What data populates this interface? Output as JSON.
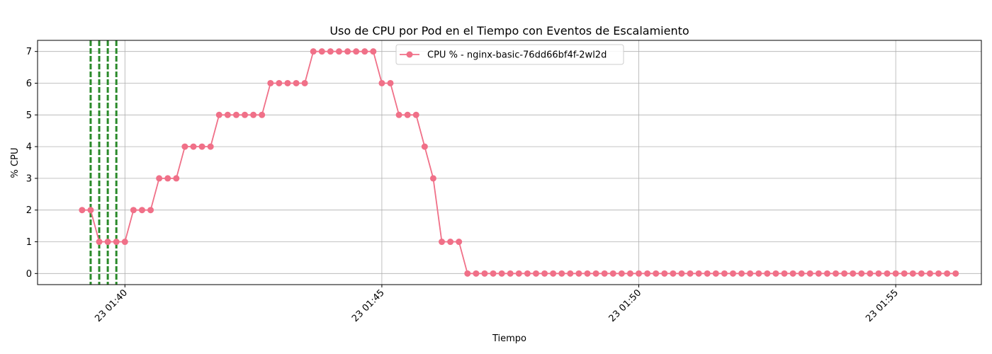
{
  "chart_data": {
    "type": "line",
    "title": "Uso de CPU por Pod en el Tiempo con Eventos de Escalamiento",
    "xlabel": "Tiempo",
    "ylabel": "% CPU",
    "xlim": [
      "01:38:18",
      "01:56:40"
    ],
    "ylim": [
      -0.35,
      7.35
    ],
    "x_ticks": [
      {
        "time": "01:40:00",
        "label": "23 01:40"
      },
      {
        "time": "01:45:00",
        "label": "23 01:45"
      },
      {
        "time": "01:50:00",
        "label": "23 01:50"
      },
      {
        "time": "01:55:00",
        "label": "23 01:55"
      }
    ],
    "y_ticks": [
      0,
      1,
      2,
      3,
      4,
      5,
      6,
      7
    ],
    "grid": true,
    "legend_position": "upper-center",
    "series": [
      {
        "name": "CPU % - nginx-basic-76dd66bf4f-2wl2d",
        "color": "#f07088",
        "marker": "circle",
        "start_time": "01:39:10",
        "interval_seconds": 10,
        "values": [
          2,
          2,
          1,
          1,
          1,
          1,
          2,
          2,
          2,
          3,
          3,
          3,
          4,
          4,
          4,
          4,
          5,
          5,
          5,
          5,
          5,
          5,
          6,
          6,
          6,
          6,
          6,
          7,
          7,
          7,
          7,
          7,
          7,
          7,
          7,
          6,
          6,
          5,
          5,
          5,
          4,
          3,
          1,
          1,
          1,
          0,
          0,
          0,
          0,
          0,
          0,
          0,
          0,
          0,
          0,
          0,
          0,
          0,
          0,
          0,
          0,
          0,
          0,
          0,
          0,
          0,
          0,
          0,
          0,
          0,
          0,
          0,
          0,
          0,
          0,
          0,
          0,
          0,
          0,
          0,
          0,
          0,
          0,
          0,
          0,
          0,
          0,
          0,
          0,
          0,
          0,
          0,
          0,
          0,
          0,
          0,
          0,
          0,
          0,
          0,
          0,
          0,
          0
        ]
      }
    ],
    "scaling_events": {
      "color": "#2a8a2a",
      "style": "dashed",
      "times": [
        "01:39:20",
        "01:39:30",
        "01:39:40",
        "01:39:50"
      ]
    }
  }
}
